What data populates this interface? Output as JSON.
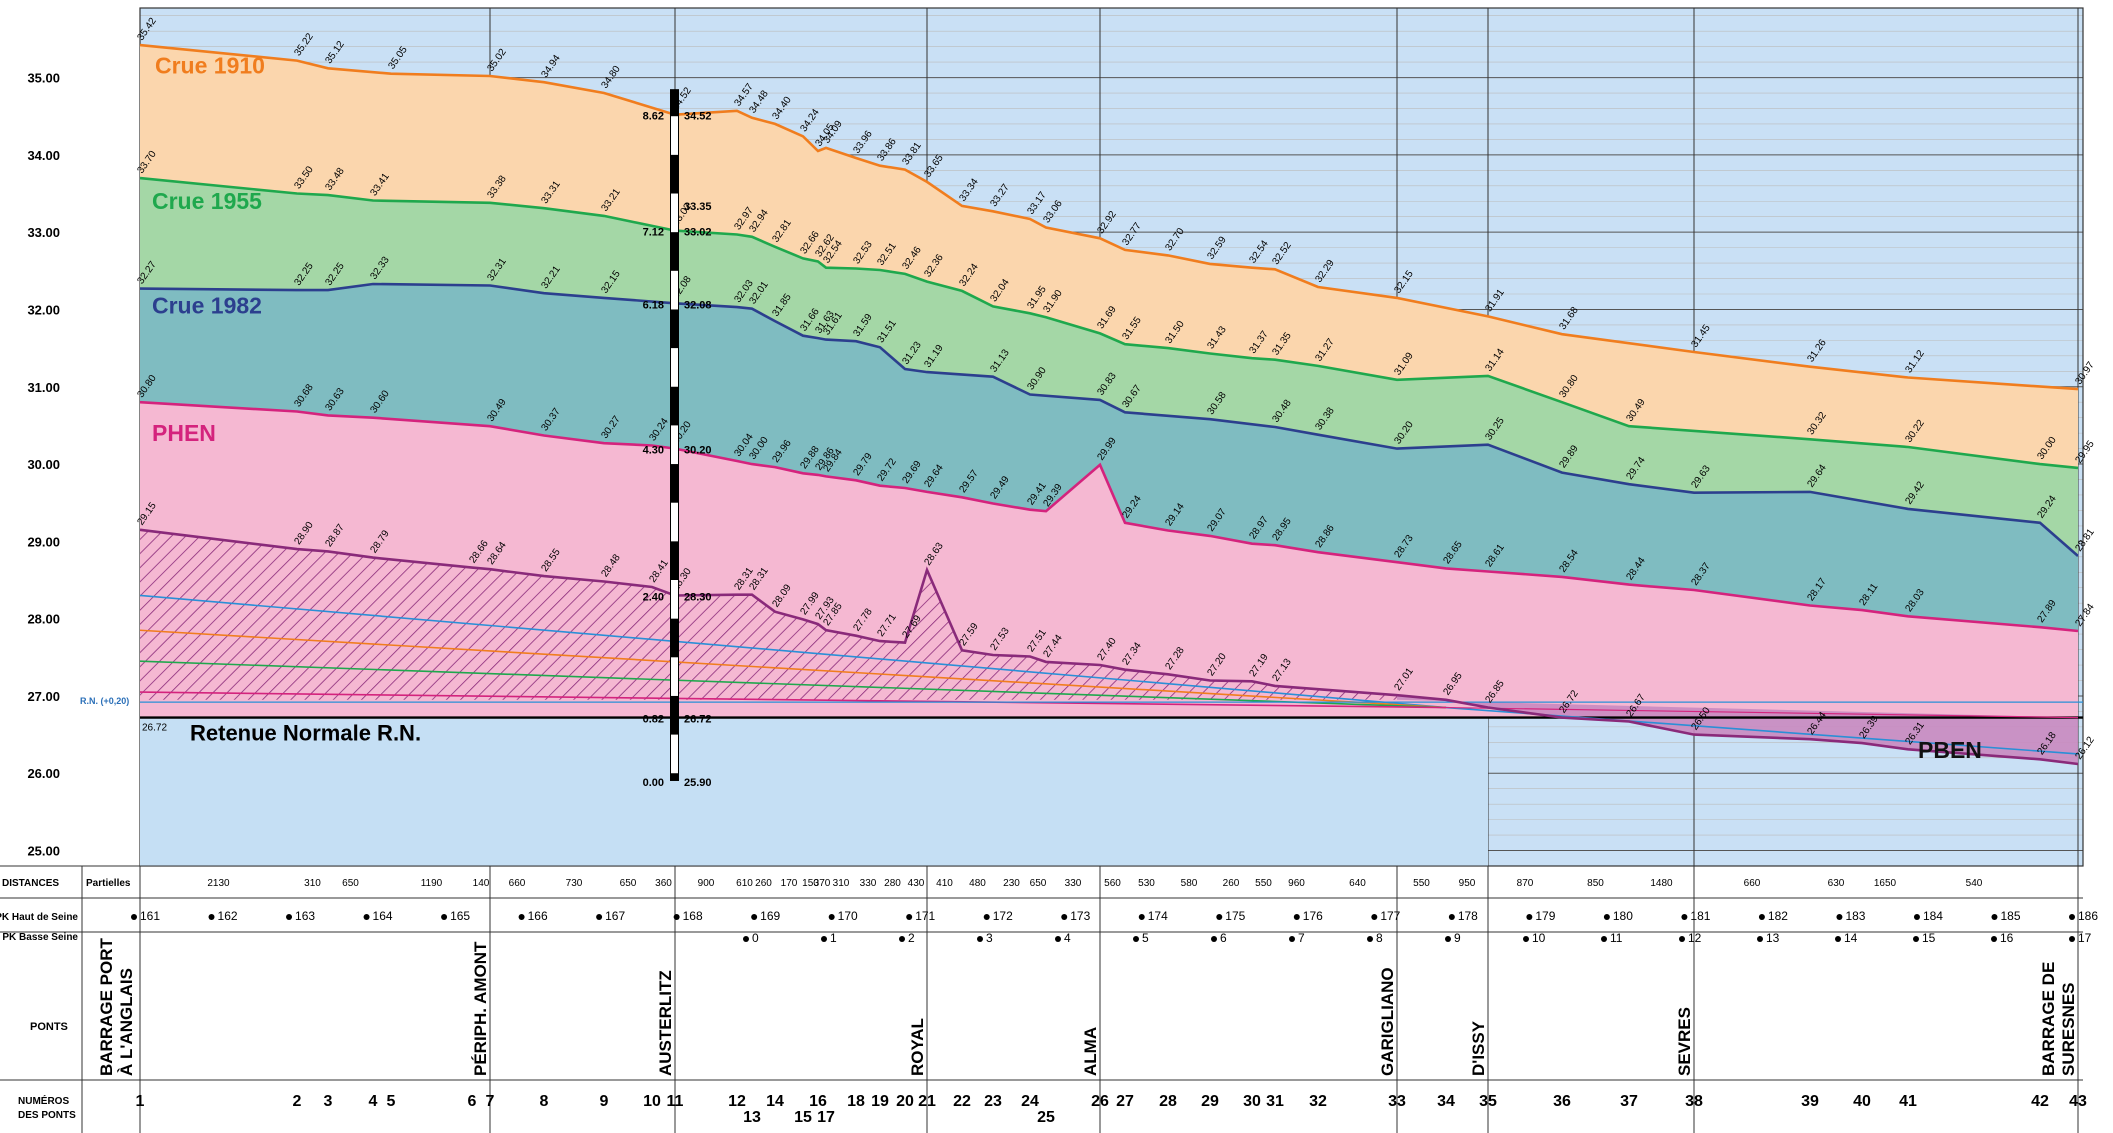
{
  "chart_data": {
    "type": "area",
    "ylim": [
      24.8,
      35.9
    ],
    "y_ticks": [
      "25.00",
      "26.00",
      "27.00",
      "28.00",
      "29.00",
      "30.00",
      "31.00",
      "32.00",
      "33.00",
      "34.00",
      "35.00"
    ],
    "series": [
      {
        "name": "Crue 1910",
        "color": "#f07d1e",
        "fill": "#fbd6ad",
        "points": [
          [
            1,
            35.42
          ],
          [
            2,
            35.22
          ],
          [
            3,
            35.12
          ],
          [
            5,
            35.05
          ],
          [
            7,
            35.02
          ],
          [
            8,
            34.94
          ],
          [
            9,
            34.8
          ],
          [
            11,
            34.52
          ],
          [
            12,
            34.57
          ],
          [
            13,
            34.48
          ],
          [
            14,
            34.4
          ],
          [
            15,
            34.24
          ],
          [
            16,
            34.05
          ],
          [
            17,
            34.09
          ],
          [
            18,
            33.96
          ],
          [
            19,
            33.86
          ],
          [
            20,
            33.81
          ],
          [
            21,
            33.65
          ],
          [
            22,
            33.34
          ],
          [
            23,
            33.27
          ],
          [
            24,
            33.17
          ],
          [
            25,
            33.06
          ],
          [
            26,
            32.92
          ],
          [
            27,
            32.77
          ],
          [
            28,
            32.7
          ],
          [
            29,
            32.59
          ],
          [
            30,
            32.54
          ],
          [
            31,
            32.52
          ],
          [
            32,
            32.29
          ],
          [
            33,
            32.15
          ],
          [
            35,
            31.91
          ],
          [
            36,
            31.68
          ],
          [
            38,
            31.45
          ],
          [
            39,
            31.26
          ],
          [
            41,
            31.12
          ],
          [
            43,
            30.97
          ]
        ]
      },
      {
        "name": "Crue 1955",
        "color": "#1fa84d",
        "fill": "#a4d7a6",
        "points": [
          [
            1,
            33.7
          ],
          [
            2,
            33.5
          ],
          [
            3,
            33.48
          ],
          [
            4,
            33.41
          ],
          [
            7,
            33.38
          ],
          [
            8,
            33.31
          ],
          [
            9,
            33.21
          ],
          [
            11,
            33.02
          ],
          [
            12,
            32.97
          ],
          [
            13,
            32.94
          ],
          [
            14,
            32.81
          ],
          [
            15,
            32.66
          ],
          [
            16,
            32.62
          ],
          [
            17,
            32.54
          ],
          [
            18,
            32.53
          ],
          [
            19,
            32.51
          ],
          [
            20,
            32.46
          ],
          [
            21,
            32.36
          ],
          [
            22,
            32.24
          ],
          [
            23,
            32.04
          ],
          [
            24,
            31.95
          ],
          [
            25,
            31.9
          ],
          [
            26,
            31.69
          ],
          [
            27,
            31.55
          ],
          [
            28,
            31.5
          ],
          [
            29,
            31.43
          ],
          [
            30,
            31.37
          ],
          [
            31,
            31.35
          ],
          [
            32,
            31.27
          ],
          [
            33,
            31.09
          ],
          [
            35,
            31.14
          ],
          [
            36,
            30.8
          ],
          [
            37,
            30.49
          ],
          [
            39,
            30.32
          ],
          [
            41,
            30.22
          ],
          [
            42,
            30.0
          ],
          [
            43,
            29.95
          ]
        ]
      },
      {
        "name": "Crue 1982",
        "color": "#2c3f8e",
        "fill": "#7fbcc1",
        "points": [
          [
            1,
            32.27
          ],
          [
            2,
            32.25
          ],
          [
            3,
            32.25
          ],
          [
            4,
            32.33
          ],
          [
            7,
            32.31
          ],
          [
            8,
            32.21
          ],
          [
            9,
            32.15
          ],
          [
            11,
            32.08
          ],
          [
            12,
            32.03
          ],
          [
            13,
            32.01
          ],
          [
            14,
            31.85
          ],
          [
            15,
            31.66
          ],
          [
            16,
            31.63
          ],
          [
            17,
            31.61
          ],
          [
            18,
            31.59
          ],
          [
            19,
            31.51
          ],
          [
            20,
            31.23
          ],
          [
            21,
            31.19
          ],
          [
            23,
            31.13
          ],
          [
            24,
            30.9
          ],
          [
            26,
            30.83
          ],
          [
            27,
            30.67
          ],
          [
            29,
            30.58
          ],
          [
            31,
            30.48
          ],
          [
            32,
            30.38
          ],
          [
            33,
            30.2
          ],
          [
            35,
            30.25
          ],
          [
            36,
            29.89
          ],
          [
            37,
            29.74
          ],
          [
            38,
            29.63
          ],
          [
            39,
            29.64
          ],
          [
            41,
            29.42
          ],
          [
            42,
            29.24
          ],
          [
            43,
            28.81
          ]
        ]
      },
      {
        "name": "PHEN",
        "color": "#d4237d",
        "fill": "#f5b8d2",
        "points": [
          [
            1,
            30.8
          ],
          [
            2,
            30.68
          ],
          [
            3,
            30.63
          ],
          [
            4,
            30.6
          ],
          [
            7,
            30.49
          ],
          [
            8,
            30.37
          ],
          [
            9,
            30.27
          ],
          [
            10,
            30.24
          ],
          [
            11,
            30.2
          ],
          [
            12,
            30.04
          ],
          [
            13,
            30.0
          ],
          [
            14,
            29.96
          ],
          [
            15,
            29.88
          ],
          [
            16,
            29.86
          ],
          [
            17,
            29.84
          ],
          [
            18,
            29.79
          ],
          [
            19,
            29.72
          ],
          [
            20,
            29.69
          ],
          [
            21,
            29.64
          ],
          [
            22,
            29.57
          ],
          [
            23,
            29.49
          ],
          [
            24,
            29.41
          ],
          [
            25,
            29.39
          ],
          [
            26,
            29.99
          ],
          [
            27,
            29.24
          ],
          [
            28,
            29.14
          ],
          [
            29,
            29.07
          ],
          [
            30,
            28.97
          ],
          [
            31,
            28.95
          ],
          [
            32,
            28.86
          ],
          [
            33,
            28.73
          ],
          [
            34,
            28.65
          ],
          [
            35,
            28.61
          ],
          [
            36,
            28.54
          ],
          [
            37,
            28.44
          ],
          [
            38,
            28.37
          ],
          [
            39,
            28.17
          ],
          [
            40,
            28.11
          ],
          [
            41,
            28.03
          ],
          [
            42,
            27.89
          ],
          [
            43,
            27.84
          ]
        ]
      },
      {
        "name": "PBEN",
        "color": "#8a2a7a",
        "fill": "#c98ac0",
        "points": [
          [
            1,
            29.15
          ],
          [
            2,
            28.9
          ],
          [
            3,
            28.87
          ],
          [
            4,
            28.79
          ],
          [
            6,
            28.66
          ],
          [
            7,
            28.64
          ],
          [
            8,
            28.55
          ],
          [
            9,
            28.48
          ],
          [
            10,
            28.41
          ],
          [
            11,
            28.3
          ],
          [
            12,
            28.31
          ],
          [
            13,
            28.31
          ],
          [
            14,
            28.09
          ],
          [
            15,
            27.99
          ],
          [
            16,
            27.93
          ],
          [
            17,
            27.85
          ],
          [
            18,
            27.78
          ],
          [
            19,
            27.71
          ],
          [
            20,
            27.69
          ],
          [
            21,
            28.63
          ],
          [
            22,
            27.59
          ],
          [
            23,
            27.53
          ],
          [
            24,
            27.51
          ],
          [
            25,
            27.44
          ],
          [
            26,
            27.4
          ],
          [
            27,
            27.34
          ],
          [
            28,
            27.28
          ],
          [
            29,
            27.2
          ],
          [
            30,
            27.19
          ],
          [
            31,
            27.13
          ],
          [
            33,
            27.01
          ],
          [
            34,
            26.95
          ],
          [
            35,
            26.85
          ],
          [
            36,
            26.72
          ],
          [
            37,
            26.67
          ],
          [
            38,
            26.5
          ],
          [
            39,
            26.44
          ],
          [
            40,
            26.39
          ],
          [
            41,
            26.31
          ],
          [
            42,
            26.18
          ],
          [
            43,
            26.12
          ]
        ]
      }
    ],
    "series_labels": [
      "Crue 1910",
      "Crue 1955",
      "Crue 1982",
      "PHEN",
      "PBEN"
    ],
    "retenue_normale": {
      "label": "Retenue Normale R.N.",
      "value": 26.72,
      "value_label": "26.72",
      "rn_marker": "R.N. (+0,20)"
    },
    "austerlitz_gauge": {
      "left_labels": [
        "8.62",
        "7.12",
        "6.18",
        "4.30",
        "2.40",
        "0.82",
        "0.00"
      ],
      "right_labels": [
        "34.52",
        "33.35",
        "33.02",
        "32.08",
        "30.20",
        "28.30",
        "26.72",
        "25.90"
      ]
    },
    "distances_label": "DISTANCES",
    "partielles_label": "Partielles",
    "distances": [
      "2130",
      "310",
      "650",
      "1190",
      "140",
      "660",
      "730",
      "650",
      "360",
      "900",
      "610",
      "260",
      "170",
      "150",
      "370",
      "310",
      "330",
      "280",
      "430",
      "410",
      "480",
      "230",
      "650",
      "330",
      "560",
      "530",
      "580",
      "260",
      "550",
      "960",
      "640",
      "550",
      "950",
      "870",
      "850",
      "1480",
      "660",
      "630",
      "1650",
      "540"
    ],
    "pk_haut_label": "PK Haut de Seine",
    "pk_basse_label": "PK Basse Seine",
    "pk_haut": [
      "161",
      "162",
      "163",
      "164",
      "165",
      "166",
      "167",
      "168",
      "169",
      "170",
      "171",
      "172",
      "173",
      "174",
      "175",
      "176",
      "177",
      "178",
      "179",
      "180",
      "181",
      "182",
      "183",
      "184",
      "185",
      "186"
    ],
    "pk_basse": [
      "0",
      "1",
      "2",
      "3",
      "4",
      "5",
      "6",
      "7",
      "8",
      "9",
      "10",
      "11",
      "12",
      "13",
      "14",
      "15",
      "16",
      "17"
    ],
    "ponts_label": "PONTS",
    "ponts": [
      "BARRAGE PORT|À L'ANGLAIS",
      "PÉRIPH. AMONT",
      "AUSTERLITZ",
      "ROYAL",
      "ALMA",
      "GARIGLIANO",
      "D'ISSY",
      "SEVRES",
      "BARRAGE DE|SURESNES"
    ],
    "numeros_label": "NUMÉROS|DES PONTS",
    "bridge_numbers": [
      "1",
      "2",
      "3",
      "4",
      "5",
      "6",
      "7",
      "8",
      "9",
      "10",
      "11",
      "12",
      "13",
      "14",
      "15",
      "16",
      "17",
      "18",
      "19",
      "20",
      "21",
      "22",
      "23",
      "24",
      "25",
      "26",
      "27",
      "28",
      "29",
      "30",
      "31",
      "32",
      "33",
      "34",
      "35",
      "36",
      "37",
      "38",
      "39",
      "40",
      "41",
      "42",
      "43"
    ]
  }
}
